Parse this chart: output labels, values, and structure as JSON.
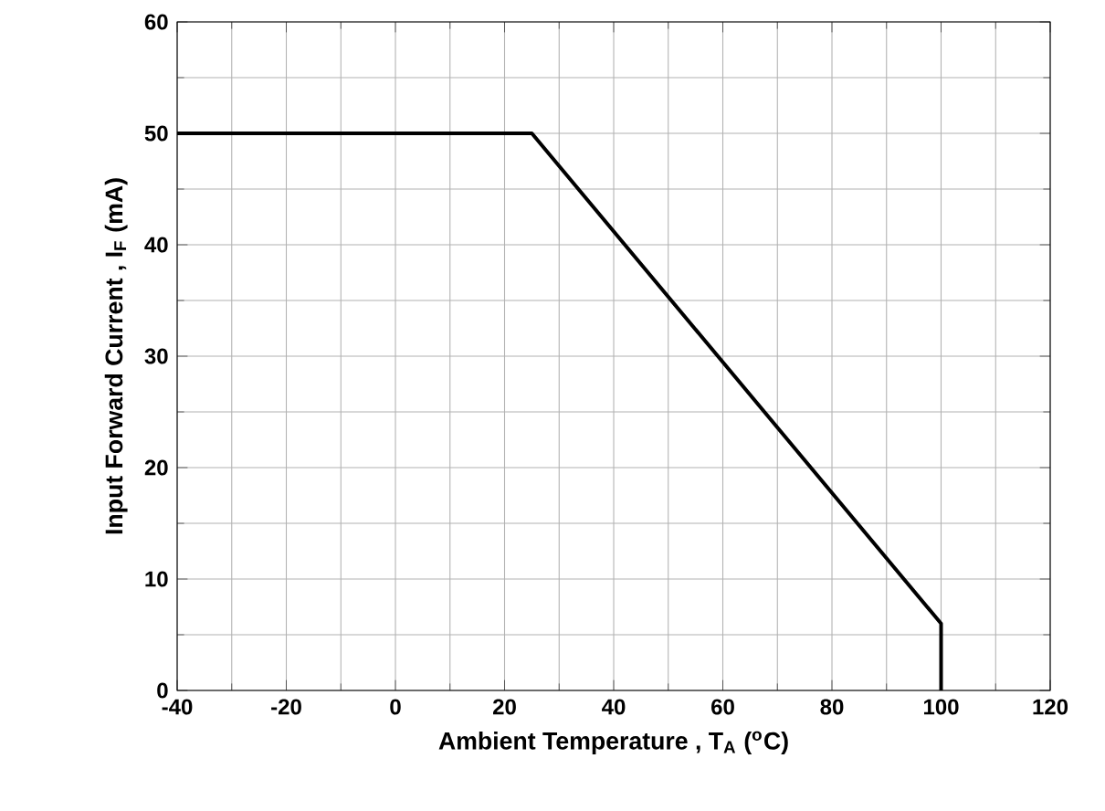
{
  "chart_data": {
    "type": "line",
    "xlabel": "Ambient Temperature , T$_{A}$ ($^{o}$C)",
    "ylabel": "Input Forward Current , I$_{F}$ (mA)",
    "x": [
      -40,
      25,
      100,
      100
    ],
    "values": [
      50,
      50,
      6,
      0
    ],
    "color": "#000000",
    "xlim": [
      -40,
      120
    ],
    "ylim": [
      0,
      60
    ],
    "xticks": [
      -40,
      -20,
      0,
      20,
      40,
      60,
      80,
      100,
      120
    ],
    "yticks": [
      0,
      10,
      20,
      30,
      40,
      50,
      60
    ],
    "grid": true,
    "marker": "none",
    "line_style": "solid"
  }
}
